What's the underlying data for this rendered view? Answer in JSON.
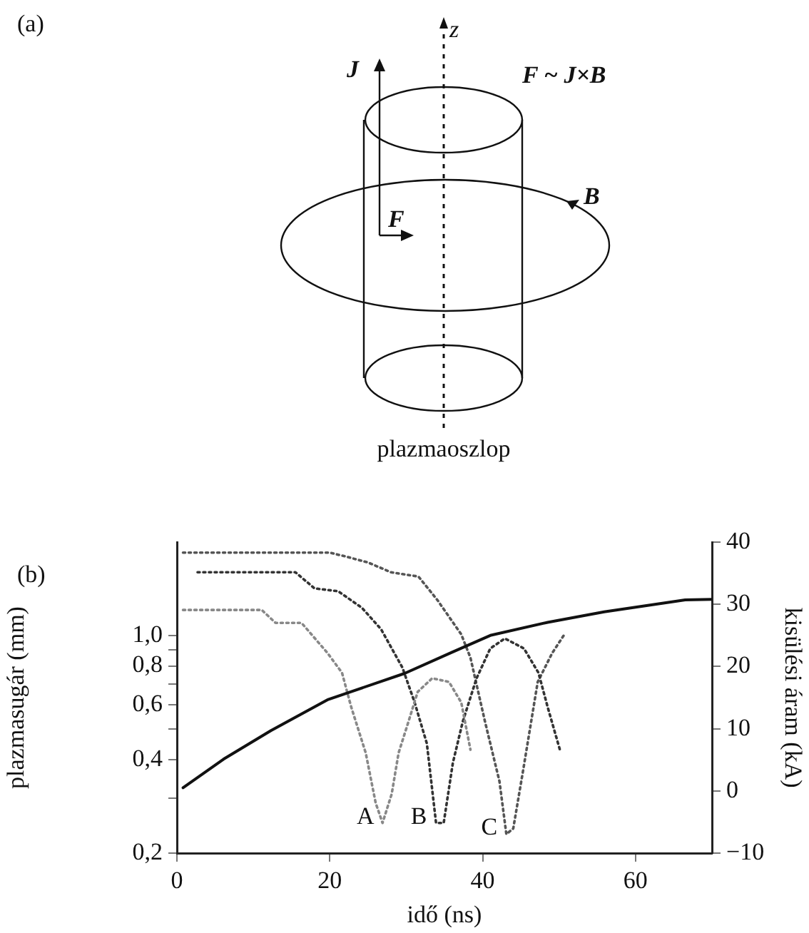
{
  "chart_data": {
    "type": "line",
    "xlabel": "idő (ns)",
    "ylabel": "plazmasugár (mm)",
    "y2label": "kisülési áram (kA)",
    "xlim": [
      0,
      70
    ],
    "xticks": [
      0,
      20,
      40,
      60
    ],
    "ylim": [
      0.2,
      2
    ],
    "yticks": [
      {
        "value": 0.2,
        "label": "0,2"
      },
      {
        "value": 0.3,
        "label": null
      },
      {
        "value": 0.4,
        "label": "0,4"
      },
      {
        "value": 0.5,
        "label": null
      },
      {
        "value": 0.6,
        "label": "0,6"
      },
      {
        "value": 0.7,
        "label": null
      },
      {
        "value": 0.8,
        "label": "0,8"
      },
      {
        "value": 0.9,
        "label": null
      },
      {
        "value": 1.0,
        "label": "1,0"
      }
    ],
    "y2lim": [
      -10,
      40
    ],
    "y2ticks": [
      {
        "value": -10,
        "label": "−10"
      },
      0,
      10,
      20,
      30,
      40
    ],
    "log": "y",
    "grid": false,
    "legend": false,
    "marker": "none",
    "series": [
      {
        "color": "#111111",
        "axis": "y2",
        "line_style": "solid",
        "x": [
          0.8,
          6.1,
          12.3,
          19.8,
          29.8,
          36,
          41,
          48.5,
          55.9,
          66.5,
          70
        ],
        "values": [
          0.5,
          5.1,
          9.7,
          14.7,
          18.9,
          22.3,
          25.0,
          27.1,
          28.8,
          30.7,
          30.8
        ]
      },
      {
        "name": "A",
        "color": "#888888",
        "line_style": "dotted",
        "x": [
          0.8,
          11.1,
          12.9,
          16.3,
          19.7,
          21.6,
          22.8,
          24.7,
          26.0,
          26.9,
          28.1,
          29.0,
          30.3,
          31.5,
          33.4,
          35.6,
          37.2,
          38.4
        ],
        "values": [
          1.21,
          1.21,
          1.1,
          1.1,
          0.88,
          0.76,
          0.59,
          0.42,
          0.29,
          0.25,
          0.31,
          0.42,
          0.53,
          0.66,
          0.73,
          0.71,
          0.61,
          0.43
        ]
      },
      {
        "name": "B",
        "color": "#333333",
        "line_style": "dotted",
        "x": [
          2.7,
          15.5,
          18,
          21.1,
          24.2,
          26.7,
          29.5,
          31.1,
          32.7,
          33.9,
          34.9,
          36.1,
          37.4,
          39.2,
          41.0,
          42.9,
          45.4,
          47.3,
          48.5,
          50.1
        ],
        "values": [
          1.6,
          1.6,
          1.42,
          1.39,
          1.23,
          1.05,
          0.79,
          0.61,
          0.45,
          0.25,
          0.25,
          0.39,
          0.53,
          0.73,
          0.91,
          0.98,
          0.91,
          0.76,
          0.59,
          0.43
        ]
      },
      {
        "name": "C",
        "color": "#555555",
        "line_style": "dotted",
        "x": [
          0.8,
          20,
          22,
          25,
          28,
          31.6,
          34.1,
          37.2,
          38.4,
          40.3,
          42.2,
          43.1,
          44.0,
          45.3,
          47.2,
          49.1,
          50.7
        ],
        "values": [
          1.85,
          1.85,
          1.8,
          1.72,
          1.6,
          1.55,
          1.3,
          1.01,
          0.85,
          0.53,
          0.34,
          0.23,
          0.24,
          0.37,
          0.71,
          0.88,
          1.01
        ]
      }
    ],
    "annotations": [
      "(a)",
      "z",
      "J",
      "F ~ J×B",
      "B",
      "F",
      "plazmaoszlop",
      "(b)"
    ]
  }
}
